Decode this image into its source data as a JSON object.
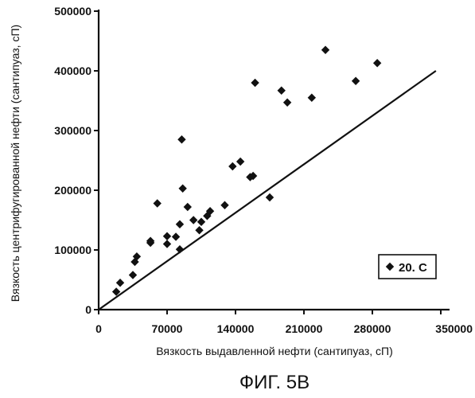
{
  "chart_data": {
    "type": "scatter",
    "title": "",
    "xlabel": "Вязкость выдавленной нефти (сантипуаз, сП)",
    "ylabel": "Вязкость центрифугированной нефти (сантипуаз, сП)",
    "xlim": [
      0,
      350000
    ],
    "ylim": [
      0,
      500000
    ],
    "x_tick_labels": [
      "0",
      "70000",
      "140000",
      "210000",
      "280000",
      "350000"
    ],
    "y_tick_labels": [
      "0",
      "100000",
      "200000",
      "300000",
      "400000",
      "500000"
    ],
    "grid": false,
    "legend_position": "bottom-right",
    "series": [
      {
        "name": "20. C",
        "marker": "diamond",
        "color": "#111111",
        "points": [
          {
            "x": 18000,
            "y": 30000
          },
          {
            "x": 22000,
            "y": 45000
          },
          {
            "x": 35000,
            "y": 58000
          },
          {
            "x": 37000,
            "y": 80000
          },
          {
            "x": 39000,
            "y": 89000
          },
          {
            "x": 53000,
            "y": 112000
          },
          {
            "x": 53000,
            "y": 115000
          },
          {
            "x": 60000,
            "y": 178000
          },
          {
            "x": 70000,
            "y": 110000
          },
          {
            "x": 70000,
            "y": 123000
          },
          {
            "x": 79000,
            "y": 122000
          },
          {
            "x": 83000,
            "y": 101000
          },
          {
            "x": 83000,
            "y": 143000
          },
          {
            "x": 85000,
            "y": 285000
          },
          {
            "x": 86000,
            "y": 203000
          },
          {
            "x": 91000,
            "y": 172000
          },
          {
            "x": 97000,
            "y": 150000
          },
          {
            "x": 103000,
            "y": 133000
          },
          {
            "x": 105000,
            "y": 147000
          },
          {
            "x": 111000,
            "y": 157000
          },
          {
            "x": 114000,
            "y": 165000
          },
          {
            "x": 129000,
            "y": 175000
          },
          {
            "x": 137000,
            "y": 240000
          },
          {
            "x": 145000,
            "y": 248000
          },
          {
            "x": 155000,
            "y": 222000
          },
          {
            "x": 158000,
            "y": 224000
          },
          {
            "x": 160000,
            "y": 380000
          },
          {
            "x": 175000,
            "y": 188000
          },
          {
            "x": 187000,
            "y": 367000
          },
          {
            "x": 193000,
            "y": 347000
          },
          {
            "x": 218000,
            "y": 355000
          },
          {
            "x": 232000,
            "y": 435000
          },
          {
            "x": 263000,
            "y": 383000
          },
          {
            "x": 285000,
            "y": 413000
          }
        ]
      }
    ],
    "reference_line": {
      "from": [
        0,
        0
      ],
      "to": [
        345000,
        400000
      ]
    }
  },
  "caption": "ФИГ. 5B"
}
